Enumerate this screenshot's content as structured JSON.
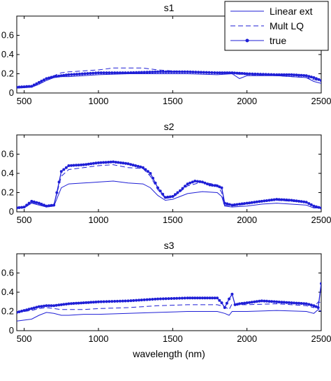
{
  "chart_data": [
    {
      "type": "line",
      "title": "s1",
      "xlabel": "",
      "ylabel": "",
      "xlim": [
        450,
        2500
      ],
      "ylim": [
        0,
        0.8
      ],
      "xticks": [
        500,
        1000,
        1500,
        2000,
        2500
      ],
      "yticks": [
        0,
        0.2,
        0.4,
        0.6
      ],
      "legend": {
        "placement": "top-right",
        "entries": [
          "Linear ext",
          "Mult LQ",
          "true"
        ]
      },
      "series": [
        {
          "name": "Linear ext",
          "style": "solid",
          "color": "#1f1fd6",
          "x": [
            450,
            550,
            600,
            650,
            700,
            750,
            800,
            1000,
            1200,
            1400,
            1600,
            1800,
            1900,
            1950,
            2000,
            2200,
            2300,
            2400,
            2450,
            2500
          ],
          "y": [
            0.05,
            0.06,
            0.09,
            0.13,
            0.16,
            0.17,
            0.17,
            0.19,
            0.2,
            0.2,
            0.2,
            0.19,
            0.2,
            0.15,
            0.18,
            0.18,
            0.17,
            0.16,
            0.12,
            0.1
          ]
        },
        {
          "name": "Mult LQ",
          "style": "dashed",
          "color": "#1f1fd6",
          "x": [
            450,
            550,
            600,
            650,
            700,
            750,
            800,
            1000,
            1100,
            1200,
            1300,
            1400,
            1500,
            1600,
            1800,
            1900,
            2000,
            2200,
            2300,
            2400,
            2450,
            2500
          ],
          "y": [
            0.06,
            0.07,
            0.1,
            0.15,
            0.18,
            0.21,
            0.22,
            0.24,
            0.26,
            0.26,
            0.26,
            0.24,
            0.23,
            0.22,
            0.21,
            0.2,
            0.19,
            0.18,
            0.17,
            0.16,
            0.14,
            0.12
          ]
        },
        {
          "name": "true",
          "style": "solid-dots",
          "color": "#1f1fd6",
          "x": [
            450,
            550,
            600,
            650,
            700,
            750,
            800,
            1000,
            1200,
            1400,
            1600,
            1800,
            1900,
            2000,
            2200,
            2300,
            2400,
            2450,
            2500
          ],
          "y": [
            0.06,
            0.07,
            0.11,
            0.15,
            0.17,
            0.18,
            0.19,
            0.21,
            0.21,
            0.22,
            0.22,
            0.21,
            0.21,
            0.2,
            0.19,
            0.19,
            0.18,
            0.16,
            0.13
          ]
        }
      ]
    },
    {
      "type": "line",
      "title": "s2",
      "xlabel": "",
      "ylabel": "",
      "xlim": [
        450,
        2500
      ],
      "ylim": [
        0,
        0.8
      ],
      "xticks": [
        500,
        1000,
        1500,
        2000,
        2500
      ],
      "yticks": [
        0,
        0.2,
        0.4,
        0.6
      ],
      "series": [
        {
          "name": "Linear ext",
          "style": "solid",
          "color": "#1f1fd6",
          "x": [
            450,
            500,
            550,
            600,
            650,
            700,
            750,
            800,
            900,
            1000,
            1100,
            1200,
            1300,
            1350,
            1400,
            1450,
            1500,
            1550,
            1600,
            1700,
            1800,
            1830,
            1850,
            1900,
            2000,
            2100,
            2200,
            2300,
            2400,
            2450,
            2500
          ],
          "y": [
            0.04,
            0.04,
            0.09,
            0.07,
            0.05,
            0.06,
            0.25,
            0.29,
            0.3,
            0.31,
            0.32,
            0.3,
            0.29,
            0.25,
            0.17,
            0.12,
            0.13,
            0.16,
            0.19,
            0.21,
            0.2,
            0.16,
            0.06,
            0.05,
            0.06,
            0.08,
            0.09,
            0.08,
            0.07,
            0.04,
            0.04
          ]
        },
        {
          "name": "Mult LQ",
          "style": "dashed",
          "color": "#1f1fd6",
          "x": [
            450,
            500,
            550,
            600,
            650,
            700,
            750,
            800,
            900,
            1000,
            1100,
            1200,
            1300,
            1350,
            1400,
            1450,
            1500,
            1550,
            1600,
            1700,
            1800,
            1830,
            1850,
            1900,
            2000,
            2100,
            2200,
            2300,
            2400,
            2450,
            2500
          ],
          "y": [
            0.05,
            0.05,
            0.1,
            0.08,
            0.06,
            0.07,
            0.37,
            0.44,
            0.46,
            0.48,
            0.49,
            0.46,
            0.45,
            0.37,
            0.23,
            0.14,
            0.15,
            0.21,
            0.27,
            0.31,
            0.28,
            0.2,
            0.07,
            0.06,
            0.08,
            0.11,
            0.12,
            0.11,
            0.1,
            0.05,
            0.04
          ]
        },
        {
          "name": "true",
          "style": "solid-dots",
          "color": "#1f1fd6",
          "x": [
            450,
            500,
            550,
            600,
            650,
            700,
            720,
            750,
            800,
            900,
            1000,
            1100,
            1200,
            1300,
            1350,
            1400,
            1450,
            1500,
            1550,
            1600,
            1650,
            1700,
            1750,
            1800,
            1830,
            1850,
            1900,
            2000,
            2100,
            2200,
            2300,
            2400,
            2450,
            2500
          ],
          "y": [
            0.04,
            0.05,
            0.11,
            0.09,
            0.06,
            0.07,
            0.2,
            0.42,
            0.48,
            0.49,
            0.51,
            0.52,
            0.5,
            0.46,
            0.4,
            0.25,
            0.15,
            0.16,
            0.22,
            0.29,
            0.32,
            0.31,
            0.28,
            0.27,
            0.25,
            0.09,
            0.07,
            0.09,
            0.11,
            0.13,
            0.12,
            0.1,
            0.06,
            0.04
          ]
        }
      ]
    },
    {
      "type": "line",
      "title": "s3",
      "xlabel": "wavelength (nm)",
      "ylabel": "",
      "xlim": [
        450,
        2500
      ],
      "ylim": [
        0,
        0.8
      ],
      "xticks": [
        500,
        1000,
        1500,
        2000,
        2500
      ],
      "yticks": [
        0,
        0.2,
        0.4,
        0.6
      ],
      "series": [
        {
          "name": "Linear ext",
          "style": "solid",
          "color": "#1f1fd6",
          "x": [
            450,
            550,
            600,
            650,
            700,
            750,
            800,
            900,
            1000,
            1200,
            1400,
            1600,
            1800,
            1850,
            1880,
            1900,
            1950,
            2000,
            2200,
            2400,
            2450,
            2480,
            2500
          ],
          "y": [
            0.1,
            0.12,
            0.16,
            0.19,
            0.18,
            0.16,
            0.16,
            0.17,
            0.17,
            0.18,
            0.19,
            0.2,
            0.2,
            0.18,
            0.16,
            0.2,
            0.2,
            0.2,
            0.21,
            0.2,
            0.18,
            0.22,
            0.2
          ]
        },
        {
          "name": "Mult LQ",
          "style": "dashed",
          "color": "#1f1fd6",
          "x": [
            450,
            550,
            600,
            650,
            700,
            750,
            800,
            900,
            1000,
            1200,
            1400,
            1600,
            1800,
            1850,
            1880,
            1900,
            1950,
            2000,
            2200,
            2400,
            2450,
            2480,
            2500
          ],
          "y": [
            0.19,
            0.21,
            0.23,
            0.24,
            0.23,
            0.22,
            0.22,
            0.22,
            0.23,
            0.24,
            0.26,
            0.27,
            0.27,
            0.25,
            0.22,
            0.28,
            0.27,
            0.27,
            0.28,
            0.26,
            0.24,
            0.3,
            0.29
          ]
        },
        {
          "name": "true",
          "style": "solid-dots",
          "color": "#1f1fd6",
          "x": [
            450,
            550,
            600,
            650,
            700,
            750,
            800,
            900,
            1000,
            1200,
            1400,
            1600,
            1700,
            1800,
            1830,
            1850,
            1880,
            1900,
            1920,
            1950,
            2000,
            2100,
            2200,
            2300,
            2400,
            2450,
            2480,
            2500
          ],
          "y": [
            0.19,
            0.23,
            0.25,
            0.26,
            0.26,
            0.27,
            0.28,
            0.29,
            0.3,
            0.31,
            0.33,
            0.34,
            0.34,
            0.34,
            0.29,
            0.24,
            0.33,
            0.38,
            0.27,
            0.28,
            0.29,
            0.31,
            0.3,
            0.29,
            0.28,
            0.26,
            0.24,
            0.49
          ]
        }
      ]
    }
  ]
}
